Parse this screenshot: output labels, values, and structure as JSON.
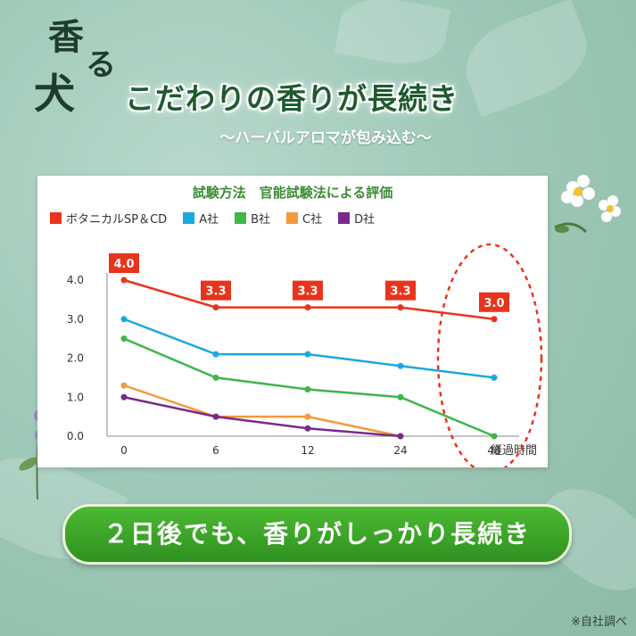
{
  "logo": {
    "char1": "香",
    "char2": "る",
    "char3": "犬"
  },
  "headline": "こだわりの香りが長続き",
  "subtitle": "〜ハーバルアロマが包み込む〜",
  "banner": "２日後でも、香りがしっかり長続き",
  "footnote": "※自社調べ",
  "colors": {
    "red": "#e8341c",
    "blue": "#1aa8e0",
    "green": "#3fb54a",
    "orange": "#f39a3a",
    "purple": "#7a2a8c"
  },
  "chart_data": {
    "type": "line",
    "title": "試験方法　官能試験法による評価",
    "xlabel": "経過時間",
    "ylabel": "",
    "x": [
      0,
      6,
      12,
      24,
      48
    ],
    "x_tick_labels": [
      "0",
      "6",
      "12",
      "24",
      "48"
    ],
    "ylim": [
      0,
      4
    ],
    "y_tick_labels": [
      "0.0",
      "1.0",
      "2.0",
      "3.0",
      "4.0"
    ],
    "legend_position": "top",
    "grid": false,
    "series": [
      {
        "name": "ボタニカルSP＆CD",
        "color": "#e8341c",
        "values": [
          4.0,
          3.3,
          3.3,
          3.3,
          3.0
        ],
        "labels": [
          "4.0",
          "3.3",
          "3.3",
          "3.3",
          "3.0"
        ]
      },
      {
        "name": "A社",
        "color": "#1aa8e0",
        "values": [
          3.0,
          2.1,
          2.1,
          1.8,
          1.5
        ]
      },
      {
        "name": "B社",
        "color": "#3fb54a",
        "values": [
          2.5,
          1.5,
          1.2,
          1.0,
          0.0
        ]
      },
      {
        "name": "C社",
        "color": "#f39a3a",
        "values": [
          1.3,
          0.5,
          0.5,
          0.0,
          null
        ]
      },
      {
        "name": "D社",
        "color": "#7a2a8c",
        "values": [
          1.0,
          0.5,
          0.2,
          0.0,
          null
        ]
      }
    ],
    "highlight_x": 48
  }
}
